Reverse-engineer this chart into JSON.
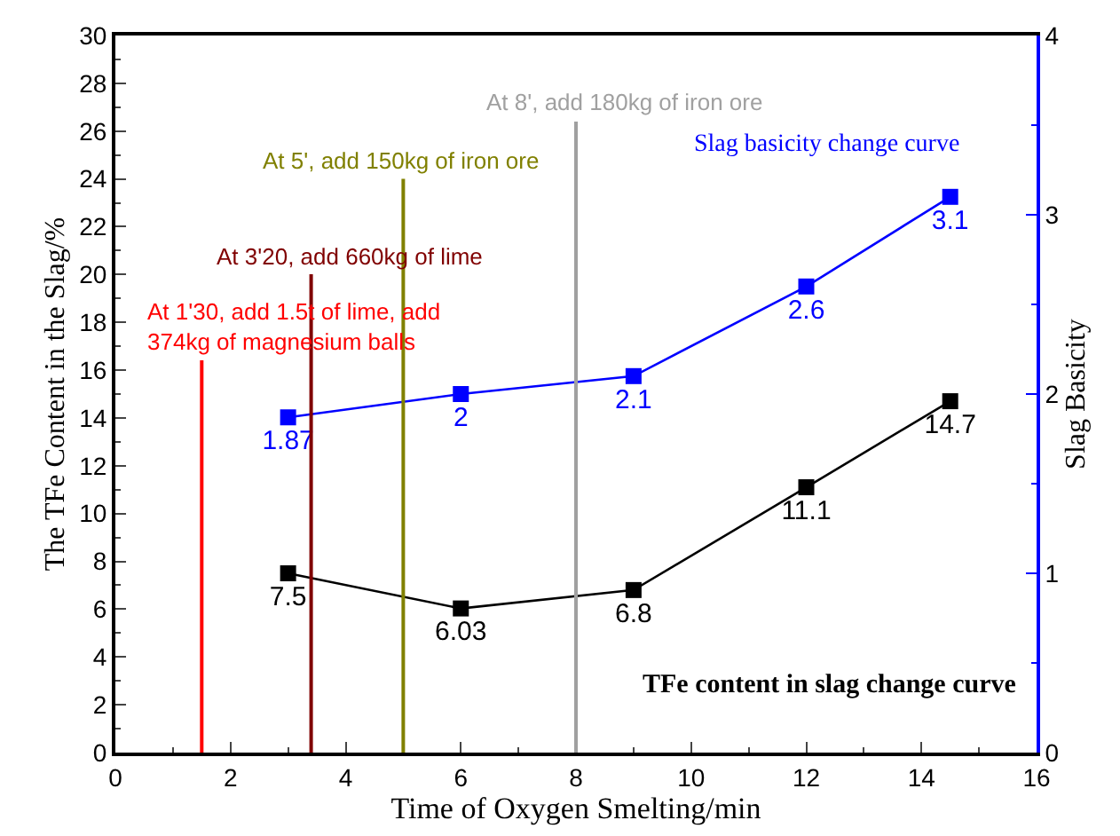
{
  "chart_data": {
    "type": "line",
    "xlabel": "Time of Oxygen Smelting/min",
    "ylabel": "The TFe Content in the Slag/%",
    "y2label": "Slag Basicity",
    "xlim": [
      0,
      16
    ],
    "xticks": [
      0,
      2,
      4,
      6,
      8,
      10,
      12,
      14,
      16
    ],
    "ylim": [
      0,
      30
    ],
    "yticks": [
      0,
      2,
      4,
      6,
      8,
      10,
      12,
      14,
      16,
      18,
      20,
      22,
      24,
      26,
      28,
      30
    ],
    "y2lim": [
      0,
      4
    ],
    "y2ticks": [
      0,
      1,
      2,
      3,
      4
    ],
    "ref_lines": [
      {
        "axis": "x",
        "value": 1.5,
        "label": "At 1'30, add 1.5t of lime, add\n374kg of magnesium balls",
        "color": "#ff0000"
      },
      {
        "axis": "x",
        "value": 3.4,
        "label": "At 3'20, add 660kg of lime",
        "color": "#800000"
      },
      {
        "axis": "x",
        "value": 5,
        "label": "At 5', add 150kg of iron ore",
        "color": "#808000"
      },
      {
        "axis": "x",
        "value": 8,
        "label": "At 8', add 180kg of iron ore",
        "color": "#a0a0a0"
      }
    ],
    "series": [
      {
        "name": "Slag basicity change curve",
        "color": "#0000ff",
        "axis": "y2",
        "x": [
          3,
          6,
          9,
          12,
          14.5
        ],
        "values": [
          1.87,
          2,
          2.1,
          2.6,
          3.1
        ],
        "value_labels": [
          "1.87",
          "2",
          "2.1",
          "2.6",
          "3.1"
        ],
        "marker": "square"
      },
      {
        "name": "TFe content in slag change curve",
        "color": "#000000",
        "x": [
          3,
          6,
          9,
          12,
          14.5
        ],
        "values": [
          7.5,
          6.03,
          6.8,
          11.1,
          14.7
        ],
        "value_labels": [
          "7.5",
          "6.03",
          "6.8",
          "11.1",
          "14.7"
        ],
        "marker": "square"
      }
    ]
  }
}
